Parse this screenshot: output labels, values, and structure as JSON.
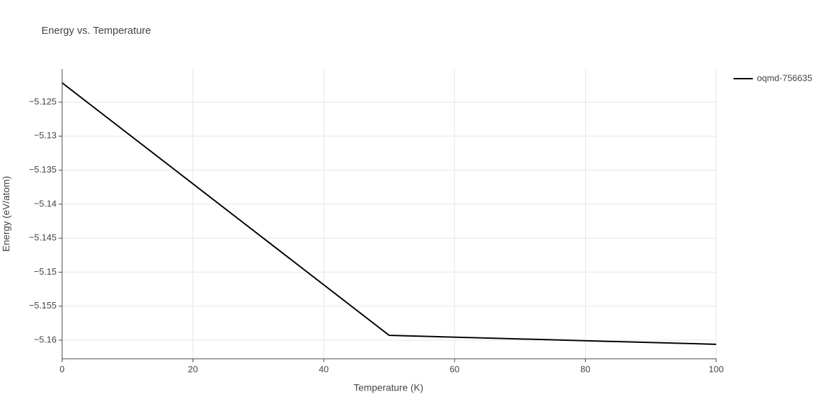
{
  "chart_data": {
    "type": "line",
    "title": "Energy vs. Temperature",
    "x_label": "Temperature (K)",
    "y_label": "Energy (eV/atom)",
    "x": [
      0,
      50,
      100
    ],
    "series": [
      {
        "name": "oqmd-756635",
        "color": "#000000",
        "values": [
          -5.12216,
          -5.15929,
          -5.16061
        ]
      }
    ],
    "xlim": [
      0,
      100
    ],
    "xticks": [
      0,
      20,
      40,
      60,
      80,
      100
    ],
    "ylim": [
      -5.16274,
      -5.12013
    ],
    "yticks": [
      {
        "value": -5.16,
        "label": "−5.16"
      },
      {
        "value": -5.155,
        "label": "−5.155"
      },
      {
        "value": -5.15,
        "label": "−5.15"
      },
      {
        "value": -5.145,
        "label": "−5.145"
      },
      {
        "value": -5.14,
        "label": "−5.14"
      },
      {
        "value": -5.135,
        "label": "−5.135"
      },
      {
        "value": -5.13,
        "label": "−5.13"
      },
      {
        "value": -5.125,
        "label": "−5.125"
      }
    ],
    "grid": true,
    "legend": "right"
  }
}
